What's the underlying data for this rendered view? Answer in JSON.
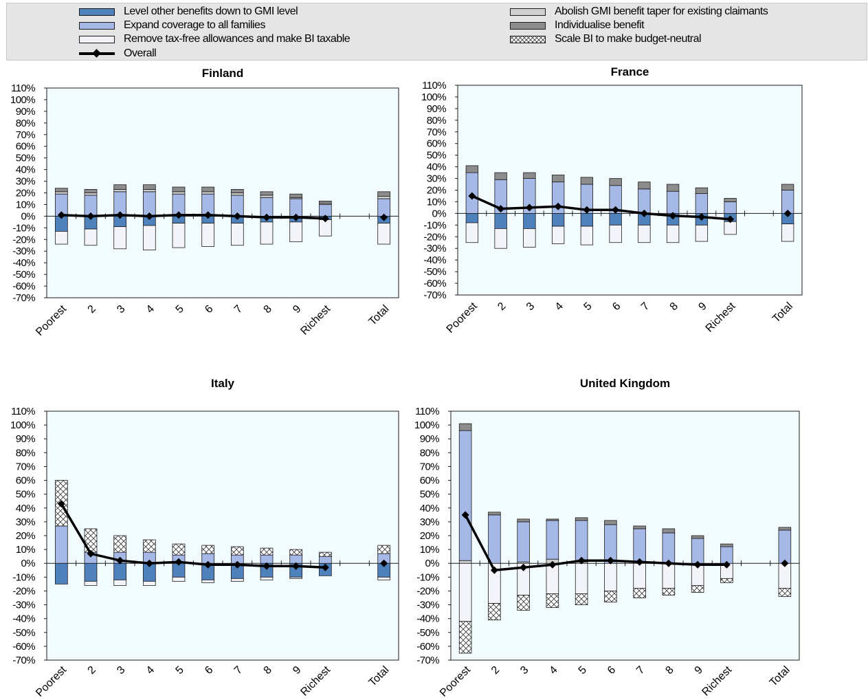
{
  "legend": {
    "items": [
      {
        "key": "level",
        "label": "Level other benefits down to GMI level"
      },
      {
        "key": "expand",
        "label": "Expand coverage to all families"
      },
      {
        "key": "remove",
        "label": "Remove tax-free allowances and make BI taxable"
      },
      {
        "key": "overall",
        "label": "Overall"
      },
      {
        "key": "abolish",
        "label": "Abolish GMI benefit taper for existing claimants"
      },
      {
        "key": "individualise",
        "label": "Individualise benefit"
      },
      {
        "key": "scale",
        "label": "Scale BI to make budget-neutral"
      }
    ]
  },
  "colors": {
    "level": "#4f81bd",
    "expand": "#a6b8e6",
    "remove": "#f3f3fa",
    "abolish": "#cfcfcf",
    "individualise": "#8c8c8c",
    "scale": "#ffffff",
    "plot_bg": "#f2fcfe",
    "overall": "#000000"
  },
  "chart_data": [
    {
      "type": "bar",
      "title": "Finland",
      "categories": [
        "Poorest",
        "2",
        "3",
        "4",
        "5",
        "6",
        "7",
        "8",
        "9",
        "Richest",
        "",
        "Total"
      ],
      "ylim": [
        -70,
        110
      ],
      "yticks": [
        "110%",
        "100%",
        "90%",
        "80%",
        "70%",
        "60%",
        "50%",
        "40%",
        "30%",
        "20%",
        "10%",
        "0%",
        "-10%",
        "-20%",
        "-30%",
        "-40%",
        "-50%",
        "-60%",
        "-70%"
      ],
      "series": [
        {
          "key": "level",
          "values": [
            -13,
            -11,
            -9,
            -8,
            -6,
            -6,
            -6,
            -5,
            -5,
            -3,
            null,
            -6
          ]
        },
        {
          "key": "remove",
          "values": [
            -11,
            -14,
            -19,
            -21,
            -21,
            -20,
            -19,
            -19,
            -17,
            -14,
            null,
            -18
          ]
        },
        {
          "key": "expand",
          "values": [
            19,
            18,
            21,
            21,
            19,
            19,
            18,
            16,
            15,
            10,
            null,
            15
          ]
        },
        {
          "key": "abolish",
          "values": [
            2,
            2,
            2,
            2,
            2,
            2,
            2,
            2,
            1,
            1,
            null,
            2
          ]
        },
        {
          "key": "individualise",
          "values": [
            3,
            3,
            4,
            4,
            4,
            4,
            3,
            3,
            3,
            2,
            null,
            4
          ]
        },
        {
          "key": "scale",
          "values": [
            0,
            0,
            0,
            0,
            0,
            0,
            0,
            0,
            0,
            0,
            null,
            0
          ]
        }
      ],
      "overall": [
        1,
        0,
        1,
        0,
        1,
        1,
        0,
        -1,
        -1,
        -2,
        null,
        -1
      ]
    },
    {
      "type": "bar",
      "title": "France",
      "categories": [
        "Poorest",
        "2",
        "3",
        "4",
        "5",
        "6",
        "7",
        "8",
        "9",
        "Richest",
        "",
        "Total"
      ],
      "ylim": [
        -70,
        110
      ],
      "yticks": [
        "110%",
        "100%",
        "90%",
        "80%",
        "70%",
        "60%",
        "50%",
        "40%",
        "30%",
        "20%",
        "10%",
        "0%",
        "-10%",
        "-20%",
        "-30%",
        "-40%",
        "-50%",
        "-60%",
        "-70%"
      ],
      "series": [
        {
          "key": "level",
          "values": [
            -8,
            -13,
            -13,
            -11,
            -11,
            -10,
            -10,
            -10,
            -10,
            -7,
            null,
            -9
          ]
        },
        {
          "key": "remove",
          "values": [
            -17,
            -17,
            -16,
            -15,
            -16,
            -15,
            -15,
            -15,
            -14,
            -11,
            null,
            -15
          ]
        },
        {
          "key": "expand",
          "values": [
            35,
            29,
            30,
            27,
            25,
            24,
            21,
            19,
            17,
            10,
            null,
            20
          ]
        },
        {
          "key": "abolish",
          "values": [
            0,
            0,
            0,
            0,
            0,
            0,
            0,
            0,
            0,
            0,
            null,
            0
          ]
        },
        {
          "key": "individualise",
          "values": [
            6,
            6,
            5,
            6,
            6,
            6,
            6,
            6,
            5,
            3,
            null,
            5
          ]
        },
        {
          "key": "scale",
          "values": [
            0,
            0,
            0,
            0,
            0,
            0,
            0,
            0,
            0,
            0,
            null,
            0
          ]
        }
      ],
      "overall": [
        15,
        4,
        5,
        6,
        3,
        3,
        0,
        -2,
        -3,
        -5,
        null,
        0
      ]
    },
    {
      "type": "bar",
      "title": "Italy",
      "categories": [
        "Poorest",
        "2",
        "3",
        "4",
        "5",
        "6",
        "7",
        "8",
        "9",
        "Richest",
        "",
        "Total"
      ],
      "ylim": [
        -70,
        110
      ],
      "yticks": [
        "110%",
        "100%",
        "90%",
        "80%",
        "70%",
        "60%",
        "50%",
        "40%",
        "30%",
        "20%",
        "10%",
        "0%",
        "-10%",
        "-20%",
        "-30%",
        "-40%",
        "-50%",
        "-60%",
        "-70%"
      ],
      "series": [
        {
          "key": "level",
          "values": [
            -15,
            -13,
            -12,
            -13,
            -10,
            -12,
            -11,
            -10,
            -10,
            -9,
            null,
            -10
          ]
        },
        {
          "key": "remove",
          "values": [
            0,
            -3,
            -4,
            -3,
            -3,
            -2,
            -2,
            -2,
            -1,
            0,
            null,
            -2
          ]
        },
        {
          "key": "expand",
          "values": [
            27,
            8,
            8,
            8,
            6,
            7,
            6,
            6,
            6,
            5,
            null,
            7
          ]
        },
        {
          "key": "abolish",
          "values": [
            0,
            0,
            0,
            0,
            0,
            0,
            0,
            0,
            0,
            0,
            null,
            0
          ]
        },
        {
          "key": "individualise",
          "values": [
            0,
            0,
            0,
            0,
            0,
            0,
            0,
            0,
            0,
            0,
            null,
            0
          ]
        },
        {
          "key": "scale",
          "values": [
            33,
            17,
            12,
            9,
            8,
            6,
            6,
            5,
            4,
            3,
            null,
            6
          ]
        }
      ],
      "overall": [
        43,
        7,
        2,
        0,
        1,
        -1,
        -1,
        -2,
        -2,
        -3,
        null,
        0
      ]
    },
    {
      "type": "bar",
      "title": "United Kingdom",
      "categories": [
        "Poorest",
        "2",
        "3",
        "4",
        "5",
        "6",
        "7",
        "8",
        "9",
        "Richest",
        "",
        "Total"
      ],
      "ylim": [
        -70,
        110
      ],
      "yticks": [
        "110%",
        "100%",
        "90%",
        "80%",
        "70%",
        "60%",
        "50%",
        "40%",
        "30%",
        "20%",
        "10%",
        "0%",
        "-10%",
        "-20%",
        "-30%",
        "-40%",
        "-50%",
        "-60%",
        "-70%"
      ],
      "series": [
        {
          "key": "level",
          "values": [
            0,
            0,
            0,
            0,
            0,
            0,
            0,
            0,
            0,
            0,
            null,
            0
          ]
        },
        {
          "key": "remove",
          "values": [
            -42,
            -29,
            -23,
            -22,
            -22,
            -20,
            -18,
            -18,
            -16,
            -11,
            null,
            -18
          ]
        },
        {
          "key": "scale",
          "values": [
            -23,
            -12,
            -11,
            -10,
            -8,
            -8,
            -7,
            -5,
            -5,
            -3,
            null,
            -6
          ]
        },
        {
          "key": "abolish",
          "values": [
            2,
            0,
            1,
            3,
            1,
            0,
            0,
            0,
            0,
            0,
            null,
            0
          ]
        },
        {
          "key": "expand",
          "values": [
            94,
            35,
            29,
            28,
            30,
            28,
            25,
            22,
            18,
            12,
            null,
            24
          ]
        },
        {
          "key": "individualise",
          "values": [
            5,
            2,
            2,
            1,
            2,
            3,
            2,
            3,
            2,
            2,
            null,
            2
          ]
        }
      ],
      "overall": [
        35,
        -5,
        -3,
        -1,
        2,
        2,
        1,
        0,
        -1,
        -1,
        null,
        0
      ]
    }
  ]
}
